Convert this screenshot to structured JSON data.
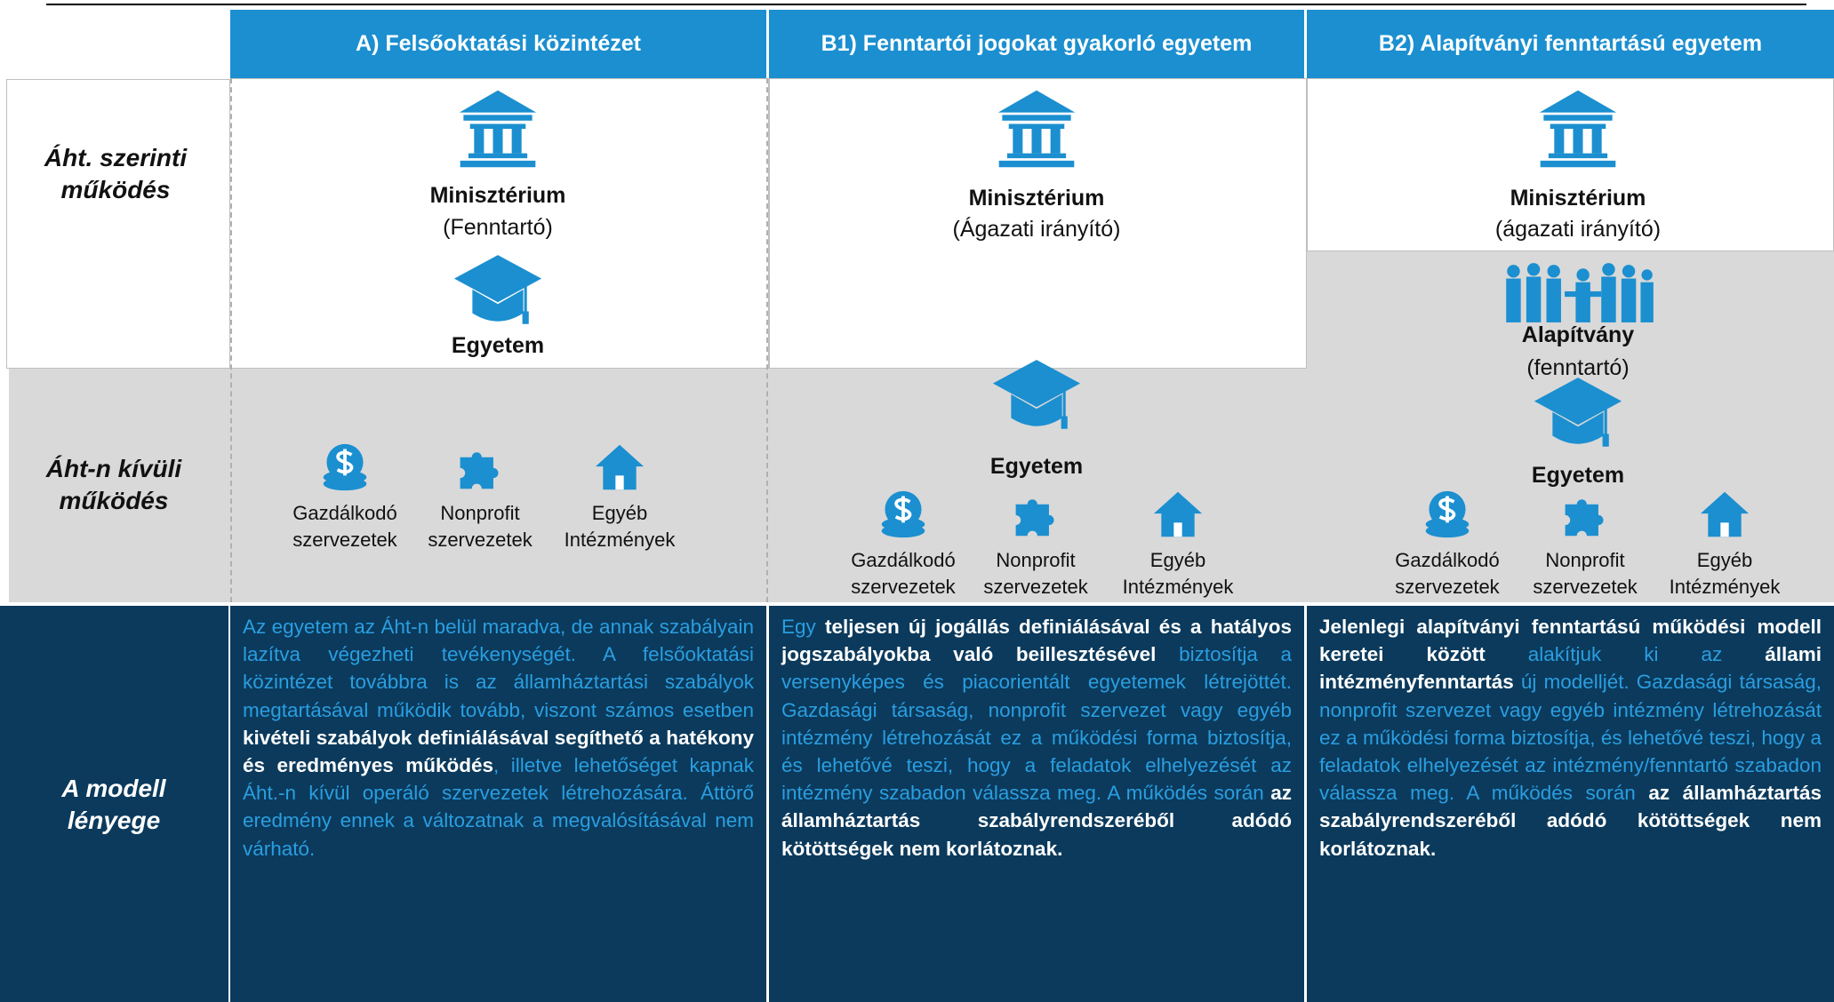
{
  "row_labels": [
    "Áht. szerinti működés",
    "Áht-n kívüli működés",
    "A modell lényege"
  ],
  "columns": [
    {
      "header": "A) Felsőoktatási közintézet",
      "ministry": "Minisztérium",
      "ministry_role": "(Fenntartó)",
      "university": "Egyetem",
      "entities": [
        "Gazdálkodó szervezetek",
        "Nonprofit szervezetek",
        "Egyéb Intézmények"
      ],
      "description": [
        {
          "text": "Az egyetem az Áht-n belül maradva, de annak szabályain lazítva végezheti tevékenységét. A felsőoktatási közintézet továbbra is az államháztartási szabályok megtartásával működik tovább, viszont számos esetben ",
          "bold": false
        },
        {
          "text": "kivételi szabályok definiálásával segíthető a hatékony és eredményes működés",
          "bold": true
        },
        {
          "text": ", illetve lehetőséget kapnak Áht.-n kívül operáló szervezetek létrehozására. Áttörő eredmény ennek a változatnak a megvalósításával nem várható.",
          "bold": false
        }
      ]
    },
    {
      "header": "B1) Fenntartói jogokat gyakorló egyetem",
      "ministry": "Minisztérium",
      "ministry_role": "(Ágazati irányító)",
      "university": "Egyetem",
      "entities": [
        "Gazdálkodó szervezetek",
        "Nonprofit szervezetek",
        "Egyéb Intézmények"
      ],
      "description": [
        {
          "text": "Egy ",
          "bold": false
        },
        {
          "text": "teljesen új jogállás definiálásával és a hatályos jogszabályokba való beillesztésével",
          "bold": true
        },
        {
          "text": " biztosítja a versenyképes és piacorientált egyetemek létrejöttét. Gazdasági társaság, nonprofit szervezet vagy egyéb intézmény létrehozását ez a működési forma biztosítja, és lehetővé teszi, hogy a feladatok elhelyezését az intézmény szabadon válassza meg. A működés során ",
          "bold": false
        },
        {
          "text": "az államháztartás szabályrendszeréből adódó kötöttségek nem korlátoznak.",
          "bold": true
        }
      ]
    },
    {
      "header": "B2) Alapítványi fenntartású egyetem",
      "ministry": "Minisztérium",
      "ministry_role": "(ágazati irányító)",
      "foundation": "Alapítvány",
      "foundation_role": "(fenntartó)",
      "university": "Egyetem",
      "entities": [
        "Gazdálkodó szervezetek",
        "Nonprofit szervezetek",
        "Egyéb Intézmények"
      ],
      "description": [
        {
          "text": "Jelenlegi alapítványi fenntartású működési modell keretei között",
          "bold": true
        },
        {
          "text": " alakítjuk ki az ",
          "bold": false
        },
        {
          "text": "állami intézményfenntartás",
          "bold": true
        },
        {
          "text": " új modelljét. Gazdasági társaság, nonprofit szervezet vagy egyéb intézmény létrehozását ez a működési forma biztosítja, és lehetővé teszi, hogy a feladatok elhelyezését az intézmény/fenntartó szabadon válassza meg. A működés során ",
          "bold": false
        },
        {
          "text": "az államháztartás szabályrendszeréből adódó kötöttségek nem korlátoznak.",
          "bold": true
        }
      ]
    }
  ]
}
